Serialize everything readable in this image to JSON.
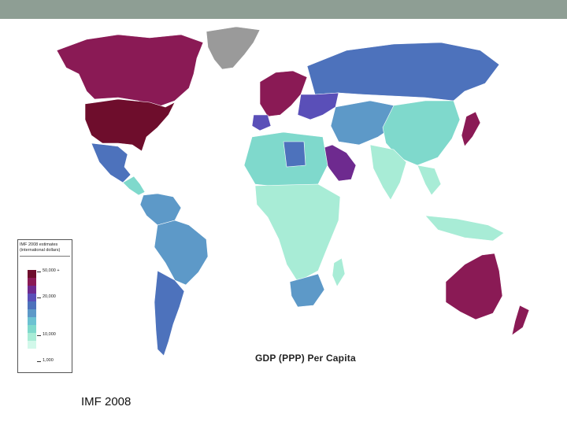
{
  "map": {
    "title": "GDP (PPP) Per Capita",
    "legend": {
      "title_line1": "IMF 2008 estimates",
      "title_line2": "(international dollars)",
      "labels": [
        "50,000 +",
        "20,000",
        "10,000",
        "1,000"
      ],
      "colors": [
        "#6e0d2c",
        "#8a1a55",
        "#6e2a8f",
        "#5a4fb8",
        "#4d72bc",
        "#5d99c8",
        "#6cc2d2",
        "#7fd9cc",
        "#a8ecd6",
        "#d2f8ea"
      ]
    },
    "region_colors": {
      "usa": "#6e0d2c",
      "canada": "#8a1a55",
      "greenland": "#9a9a9a",
      "mexico": "#4d72bc",
      "central_america": "#7fd9cc",
      "south_america_north": "#5d99c8",
      "brazil": "#5d99c8",
      "argentina": "#4d72bc",
      "europe_west": "#8a1a55",
      "europe_east": "#5a4fb8",
      "russia": "#4d72bc",
      "north_africa": "#7fd9cc",
      "libya": "#4d72bc",
      "africa_central": "#a8ecd6",
      "south_africa": "#5d99c8",
      "middle_east": "#6e2a8f",
      "iran_central_asia": "#5d99c8",
      "india": "#a8ecd6",
      "china": "#7fd9cc",
      "mongolia": "#7fd9cc",
      "japan": "#8a1a55",
      "se_asia": "#a8ecd6",
      "australia": "#8a1a55",
      "new_zealand": "#8a1a55",
      "no_data": "#9a9a9a"
    }
  },
  "caption": "IMF 2008"
}
